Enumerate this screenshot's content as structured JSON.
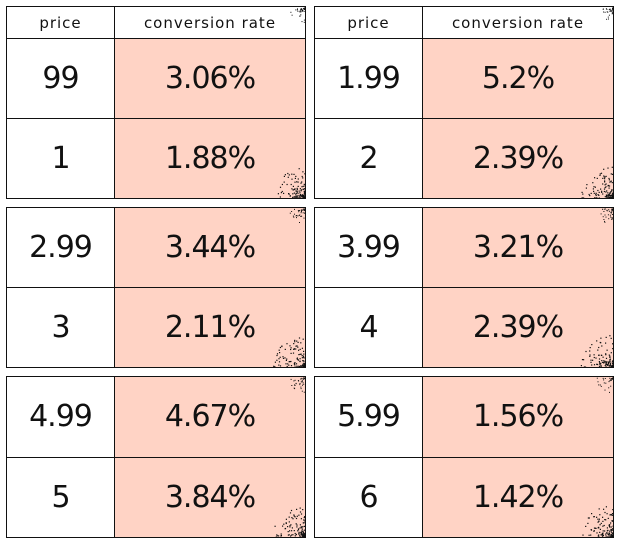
{
  "chart_data": {
    "type": "table",
    "columns": [
      "price",
      "conversion rate"
    ],
    "panels": [
      {
        "rows": [
          {
            "price": "99",
            "rate": "3.06%"
          },
          {
            "price": "1",
            "rate": "1.88%"
          }
        ]
      },
      {
        "rows": [
          {
            "price": "1.99",
            "rate": "5.2%"
          },
          {
            "price": "2",
            "rate": "2.39%"
          }
        ]
      },
      {
        "rows": [
          {
            "price": "2.99",
            "rate": "3.44%"
          },
          {
            "price": "3",
            "rate": "2.11%"
          }
        ]
      },
      {
        "rows": [
          {
            "price": "3.99",
            "rate": "3.21%"
          },
          {
            "price": "4",
            "rate": "2.39%"
          }
        ]
      },
      {
        "rows": [
          {
            "price": "4.99",
            "rate": "4.67%"
          },
          {
            "price": "5",
            "rate": "3.84%"
          }
        ]
      },
      {
        "rows": [
          {
            "price": "5.99",
            "rate": "1.56%"
          },
          {
            "price": "6",
            "rate": "1.42%"
          }
        ]
      }
    ],
    "colors": {
      "rate_fill": "#ffd3c5",
      "border": "#111111"
    }
  }
}
